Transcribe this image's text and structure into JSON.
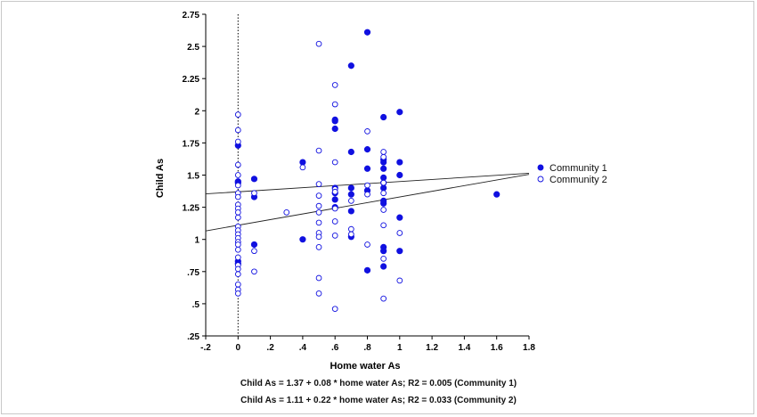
{
  "chart_data": {
    "type": "scatter",
    "xlabel": "Home  water As",
    "ylabel": "Child As",
    "xlim": [
      -0.2,
      1.8
    ],
    "ylim": [
      0.25,
      2.75
    ],
    "xticks": [
      "-.2",
      "0",
      ".2",
      ".4",
      ".6",
      ".8",
      "1",
      "1.2",
      "1.4",
      "1.6",
      "1.8"
    ],
    "yticks": [
      ".25",
      ".5",
      ".75",
      "1",
      "1.25",
      "1.5",
      "1.75",
      "2",
      "2.25",
      "2.5",
      "2.75"
    ],
    "reference_line_x": 0,
    "legend_position": "right",
    "series": [
      {
        "name": "Community 1",
        "marker": "filled-circle",
        "color": "#1010e0",
        "points": [
          [
            0,
            1.73
          ],
          [
            0,
            1.45
          ],
          [
            0,
            1.44
          ],
          [
            0,
            0.83
          ],
          [
            0,
            0.81
          ],
          [
            0.1,
            1.47
          ],
          [
            0.1,
            1.33
          ],
          [
            0.1,
            0.96
          ],
          [
            0.4,
            1.6
          ],
          [
            0.4,
            1.0
          ],
          [
            0.6,
            1.93
          ],
          [
            0.6,
            1.92
          ],
          [
            0.6,
            1.86
          ],
          [
            0.6,
            1.4
          ],
          [
            0.6,
            1.36
          ],
          [
            0.6,
            1.31
          ],
          [
            0.6,
            1.25
          ],
          [
            0.7,
            2.35
          ],
          [
            0.7,
            1.68
          ],
          [
            0.7,
            1.4
          ],
          [
            0.7,
            1.35
          ],
          [
            0.7,
            1.22
          ],
          [
            0.7,
            1.02
          ],
          [
            0.8,
            2.61
          ],
          [
            0.8,
            1.7
          ],
          [
            0.8,
            1.55
          ],
          [
            0.8,
            1.38
          ],
          [
            0.8,
            0.76
          ],
          [
            0.9,
            1.95
          ],
          [
            0.9,
            1.62
          ],
          [
            0.9,
            1.6
          ],
          [
            0.9,
            1.55
          ],
          [
            0.9,
            1.48
          ],
          [
            0.9,
            1.44
          ],
          [
            0.9,
            1.4
          ],
          [
            0.9,
            1.3
          ],
          [
            0.9,
            1.28
          ],
          [
            0.9,
            0.94
          ],
          [
            0.9,
            0.91
          ],
          [
            0.9,
            0.79
          ],
          [
            1.0,
            1.99
          ],
          [
            1.0,
            1.6
          ],
          [
            1.0,
            1.5
          ],
          [
            1.0,
            1.17
          ],
          [
            1.0,
            0.91
          ],
          [
            1.6,
            1.35
          ]
        ]
      },
      {
        "name": "Community 2",
        "marker": "open-circle",
        "color": "#1010e0",
        "points": [
          [
            0,
            1.97
          ],
          [
            0,
            1.85
          ],
          [
            0,
            1.76
          ],
          [
            0,
            1.58
          ],
          [
            0,
            1.5
          ],
          [
            0,
            1.42
          ],
          [
            0,
            1.36
          ],
          [
            0,
            1.33
          ],
          [
            0,
            1.27
          ],
          [
            0,
            1.24
          ],
          [
            0,
            1.21
          ],
          [
            0,
            1.17
          ],
          [
            0,
            1.1
          ],
          [
            0,
            1.07
          ],
          [
            0,
            1.04
          ],
          [
            0,
            1.01
          ],
          [
            0,
            0.98
          ],
          [
            0,
            0.96
          ],
          [
            0,
            0.92
          ],
          [
            0,
            0.86
          ],
          [
            0,
            0.8
          ],
          [
            0,
            0.77
          ],
          [
            0,
            0.73
          ],
          [
            0,
            0.65
          ],
          [
            0,
            0.61
          ],
          [
            0,
            0.58
          ],
          [
            0.1,
            1.36
          ],
          [
            0.1,
            0.91
          ],
          [
            0.1,
            0.75
          ],
          [
            0.3,
            1.21
          ],
          [
            0.4,
            1.56
          ],
          [
            0.5,
            2.52
          ],
          [
            0.5,
            1.69
          ],
          [
            0.5,
            1.43
          ],
          [
            0.5,
            1.34
          ],
          [
            0.5,
            1.26
          ],
          [
            0.5,
            1.21
          ],
          [
            0.5,
            1.13
          ],
          [
            0.5,
            1.05
          ],
          [
            0.5,
            1.02
          ],
          [
            0.5,
            0.94
          ],
          [
            0.5,
            0.7
          ],
          [
            0.5,
            0.58
          ],
          [
            0.6,
            2.2
          ],
          [
            0.6,
            2.05
          ],
          [
            0.6,
            1.6
          ],
          [
            0.6,
            1.39
          ],
          [
            0.6,
            1.37
          ],
          [
            0.6,
            1.24
          ],
          [
            0.6,
            1.14
          ],
          [
            0.6,
            1.03
          ],
          [
            0.6,
            0.46
          ],
          [
            0.7,
            1.3
          ],
          [
            0.7,
            1.08
          ],
          [
            0.7,
            1.04
          ],
          [
            0.8,
            1.84
          ],
          [
            0.8,
            1.42
          ],
          [
            0.8,
            1.35
          ],
          [
            0.8,
            0.96
          ],
          [
            0.9,
            1.68
          ],
          [
            0.9,
            1.64
          ],
          [
            0.9,
            1.44
          ],
          [
            0.9,
            1.36
          ],
          [
            0.9,
            1.23
          ],
          [
            0.9,
            1.11
          ],
          [
            0.9,
            0.85
          ],
          [
            0.9,
            0.54
          ],
          [
            1.0,
            1.05
          ],
          [
            1.0,
            0.68
          ]
        ]
      }
    ],
    "fit_lines": [
      {
        "intercept": 1.37,
        "slope": 0.08
      },
      {
        "intercept": 1.11,
        "slope": 0.22
      }
    ],
    "equations": [
      "Child As = 1.37 + 0.08 * home water As;  R2 = 0.005   (Community 1)",
      "Child As = 1.11 + 0.22 * home water As;  R2 = 0.033   (Community 2)"
    ]
  }
}
